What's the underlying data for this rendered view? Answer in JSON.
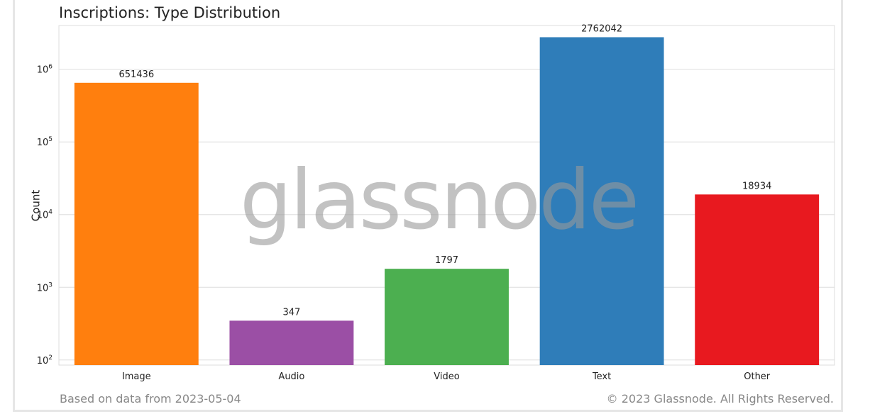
{
  "chart_data": {
    "type": "bar",
    "title": "Inscriptions: Type Distribution",
    "ylabel": "Count",
    "xlabel": "",
    "yscale": "log",
    "ylim": [
      85,
      4000000
    ],
    "yticks": [
      {
        "value": 100,
        "base": "10",
        "exp": "2"
      },
      {
        "value": 1000,
        "base": "10",
        "exp": "3"
      },
      {
        "value": 10000,
        "base": "10",
        "exp": "4"
      },
      {
        "value": 100000,
        "base": "10",
        "exp": "5"
      },
      {
        "value": 1000000,
        "base": "10",
        "exp": "6"
      }
    ],
    "categories": [
      "Image",
      "Audio",
      "Video",
      "Text",
      "Other"
    ],
    "values": [
      651436,
      347,
      1797,
      2762042,
      18934
    ],
    "data_labels": [
      "651436",
      "347",
      "1797",
      "2762042",
      "18934"
    ],
    "colors": [
      "#ff7f0e",
      "#9b4fa5",
      "#4caf50",
      "#2f7db9",
      "#e8191f"
    ],
    "grid": true,
    "legend": "none"
  },
  "watermark": "glassnode",
  "footer": {
    "left": "Based on data from 2023-05-04",
    "right": "© 2023 Glassnode. All Rights Reserved."
  }
}
